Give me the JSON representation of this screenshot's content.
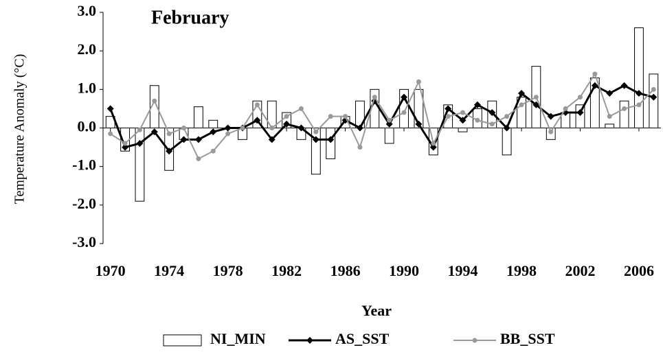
{
  "chart_data": {
    "type": "bar-line",
    "title": "February",
    "x_label": "Year",
    "y_label": "Temperature Anomaly (°C)",
    "x": [
      1970,
      1971,
      1972,
      1973,
      1974,
      1975,
      1976,
      1977,
      1978,
      1979,
      1980,
      1981,
      1982,
      1983,
      1984,
      1985,
      1986,
      1987,
      1988,
      1989,
      1990,
      1991,
      1992,
      1993,
      1994,
      1995,
      1996,
      1997,
      1998,
      1999,
      2000,
      2001,
      2002,
      2003,
      2004,
      2005,
      2006,
      2007
    ],
    "series": [
      {
        "name": "NI_MIN",
        "kind": "bar",
        "color": "#ffffff",
        "values": [
          0.3,
          -0.6,
          -1.9,
          1.1,
          -1.1,
          -0.3,
          0.55,
          0.2,
          0.0,
          -0.3,
          0.7,
          0.7,
          0.4,
          -0.3,
          -1.2,
          -0.8,
          0.3,
          0.7,
          1.0,
          -0.4,
          1.0,
          1.0,
          -0.7,
          0.6,
          -0.1,
          0.5,
          0.7,
          -0.7,
          0.8,
          1.6,
          -0.3,
          0.4,
          0.6,
          1.3,
          0.1,
          0.7,
          2.6,
          1.4
        ]
      },
      {
        "name": "AS_SST",
        "kind": "line",
        "color": "#000000",
        "values": [
          0.5,
          -0.5,
          -0.4,
          -0.1,
          -0.6,
          -0.3,
          -0.3,
          -0.1,
          0.0,
          0.0,
          0.2,
          -0.3,
          0.1,
          0.0,
          -0.3,
          -0.3,
          0.2,
          0.0,
          0.7,
          0.1,
          0.8,
          0.1,
          -0.5,
          0.5,
          0.2,
          0.6,
          0.4,
          0.0,
          0.9,
          0.6,
          0.3,
          0.4,
          0.4,
          1.1,
          0.9,
          1.1,
          0.9,
          0.8
        ]
      },
      {
        "name": "BB_SST",
        "kind": "line",
        "color": "#999999",
        "values": [
          -0.15,
          -0.4,
          -0.05,
          0.7,
          -0.15,
          0.0,
          -0.8,
          -0.6,
          -0.15,
          0.0,
          0.6,
          0.0,
          0.3,
          0.5,
          -0.1,
          0.3,
          0.3,
          -0.5,
          0.8,
          0.2,
          0.4,
          1.2,
          -0.4,
          0.3,
          0.4,
          0.2,
          0.1,
          0.3,
          0.6,
          0.8,
          -0.1,
          0.5,
          0.8,
          1.4,
          0.3,
          0.5,
          0.6,
          1.0
        ]
      }
    ],
    "xlim": [
      1969.5,
      2007.5
    ],
    "xticks": [
      1970,
      1974,
      1978,
      1982,
      1986,
      1990,
      1994,
      1998,
      2002,
      2006
    ],
    "ylim": [
      -3,
      3
    ],
    "yticks": [
      {
        "value": -3,
        "label": "-3.0"
      },
      {
        "value": -2,
        "label": "-2.0"
      },
      {
        "value": -1,
        "label": "-1.0"
      },
      {
        "value": 0,
        "label": "0.0"
      },
      {
        "value": 1,
        "label": "1.0"
      },
      {
        "value": 2,
        "label": "2.0"
      },
      {
        "value": 3,
        "label": "3.0"
      }
    ],
    "legend": "bottom"
  }
}
